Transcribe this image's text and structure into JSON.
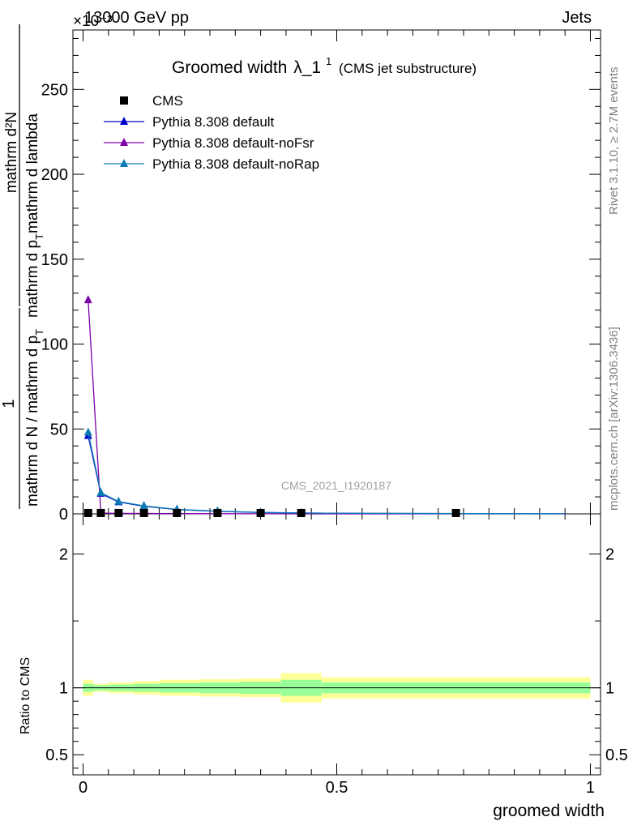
{
  "header": {
    "energy": "13000 GeV pp",
    "process": "Jets",
    "exponent": "×10⁻³"
  },
  "plot_title": {
    "main": "Groomed width",
    "lambda": "λ_1",
    "sup": "1",
    "sub": "(CMS jet substructure)"
  },
  "side_labels": {
    "rivet": "Rivet 3.1.10, ≥ 2.7M events",
    "mcplots": "mcplots.cern.ch [arXiv:1306.3436]"
  },
  "watermark": "CMS_2021_I1920187",
  "ylabel_main": {
    "frac1_num": "1",
    "frac1_den": "mathrm d N / mathrm d p",
    "frac1_den_sub": "T",
    "frac2_num": "mathrm d²N",
    "frac2_den": "mathrm d p",
    "frac2_den_sub": "T",
    "frac2_den_rest": "mathrm d lambda"
  },
  "ylabel_ratio": "Ratio to CMS",
  "xlabel": "groomed width",
  "colors": {
    "cms": "#000000",
    "default": "#0000cc",
    "noFsr": "#7b00a8",
    "noRap": "#0a7bb5",
    "band_outer": "#ffff99",
    "band_inner": "#99ff99"
  },
  "chart_data": {
    "type": "line",
    "main_ylim": [
      0,
      285
    ],
    "ratio_ylim": [
      0.35,
      2.3
    ],
    "xlim": [
      -0.02,
      1.02
    ],
    "x_ticks": [
      "0",
      "0.5",
      "1"
    ],
    "main_y_ticks": [
      "0",
      "50",
      "100",
      "150",
      "200",
      "250"
    ],
    "ratio_y_ticks": [
      "0.5",
      "1",
      "2"
    ],
    "legend": [
      "CMS",
      "Pythia 8.308 default",
      "Pythia 8.308 default-noFsr",
      "Pythia 8.308 default-noRap"
    ],
    "cms": {
      "name": "CMS",
      "x": [
        0.01,
        0.035,
        0.07,
        0.12,
        0.185,
        0.265,
        0.35,
        0.43,
        0.735
      ],
      "y": [
        0.5,
        0.5,
        0.5,
        0.5,
        0.5,
        0.5,
        0.5,
        0.5,
        0.5
      ]
    },
    "series": [
      {
        "name": "Pythia 8.308 default",
        "x": [
          0.01,
          0.035,
          0.07,
          0.12,
          0.185,
          0.265,
          0.35,
          0.43,
          0.55,
          0.65,
          0.75,
          0.85,
          0.95
        ],
        "y": [
          46,
          12,
          7,
          4.5,
          2.5,
          1.5,
          0.8,
          0.5,
          0.3,
          0.2,
          0.15,
          0.1,
          0.05
        ]
      },
      {
        "name": "Pythia 8.308 default-noFsr",
        "x": [
          0.01,
          0.035,
          0.07,
          0.12,
          0.185,
          0.265,
          0.35,
          0.43,
          0.55,
          0.65,
          0.75,
          0.85,
          0.95
        ],
        "y": [
          126,
          0.4,
          0.3,
          0.2,
          0.15,
          0.1,
          0.05,
          0.04,
          0.03,
          0.02,
          0.02,
          0.01,
          0.01
        ]
      },
      {
        "name": "Pythia 8.308 default-noRap",
        "x": [
          0.01,
          0.035,
          0.07,
          0.12,
          0.185,
          0.265,
          0.35,
          0.43,
          0.55,
          0.65,
          0.75,
          0.85,
          0.95
        ],
        "y": [
          48,
          12.5,
          7.2,
          4.7,
          2.6,
          1.6,
          0.85,
          0.5,
          0.3,
          0.2,
          0.15,
          0.1,
          0.05
        ]
      }
    ],
    "ratio_bands": {
      "edges": [
        0.0,
        0.02,
        0.05,
        0.1,
        0.15,
        0.23,
        0.31,
        0.39,
        0.47,
        1.0
      ],
      "inner": [
        [
          0.97,
          1.03
        ],
        [
          0.98,
          1.02
        ],
        [
          0.975,
          1.025
        ],
        [
          0.97,
          1.03
        ],
        [
          0.965,
          1.035
        ],
        [
          0.96,
          1.04
        ],
        [
          0.955,
          1.045
        ],
        [
          0.94,
          1.06
        ],
        [
          0.96,
          1.04
        ]
      ],
      "outer": [
        [
          0.94,
          1.06
        ],
        [
          0.97,
          1.03
        ],
        [
          0.96,
          1.04
        ],
        [
          0.95,
          1.05
        ],
        [
          0.94,
          1.06
        ],
        [
          0.935,
          1.065
        ],
        [
          0.93,
          1.07
        ],
        [
          0.89,
          1.11
        ],
        [
          0.92,
          1.08
        ]
      ]
    }
  }
}
